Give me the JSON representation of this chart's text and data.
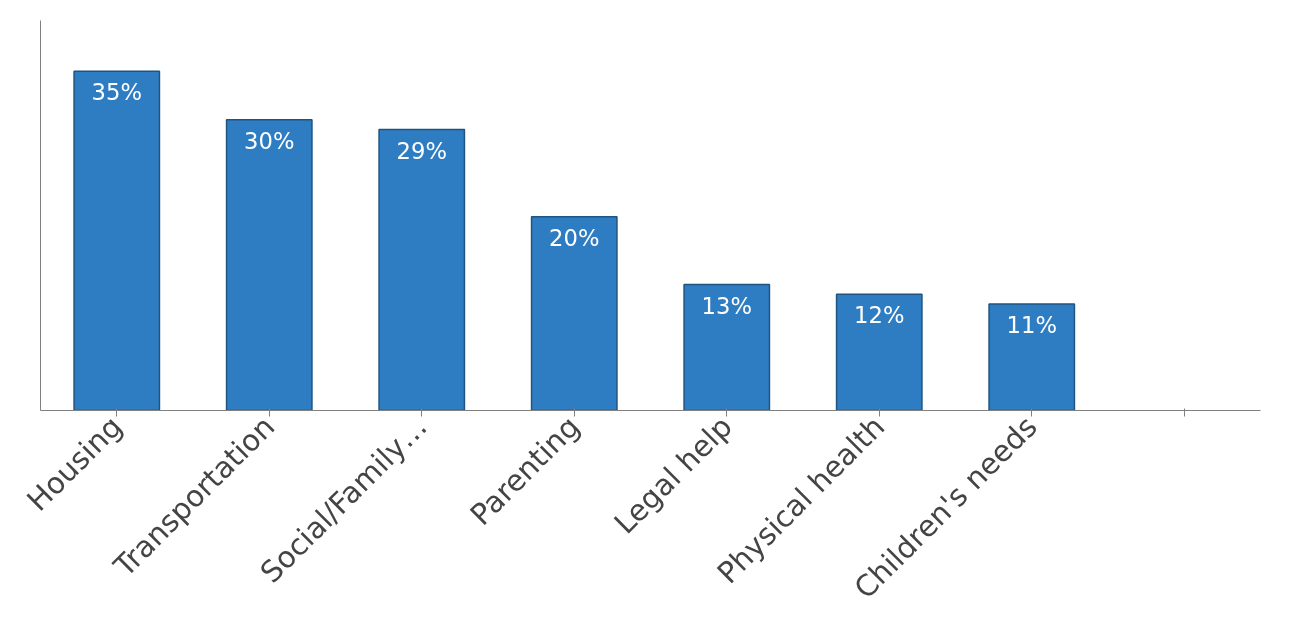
{
  "chart_data": {
    "type": "bar",
    "categories": [
      "Housing",
      "Transportation",
      "Social/Family…",
      "Parenting",
      "Legal help",
      "Physical health",
      "Children's needs",
      null
    ],
    "values": [
      35,
      30,
      29,
      20,
      13,
      12,
      11,
      null
    ],
    "value_labels": [
      "35%",
      "30%",
      "29%",
      "20%",
      "13%",
      "12%",
      "11%",
      null
    ],
    "color": "#2e7dc3",
    "tick_labels": "x"
  }
}
